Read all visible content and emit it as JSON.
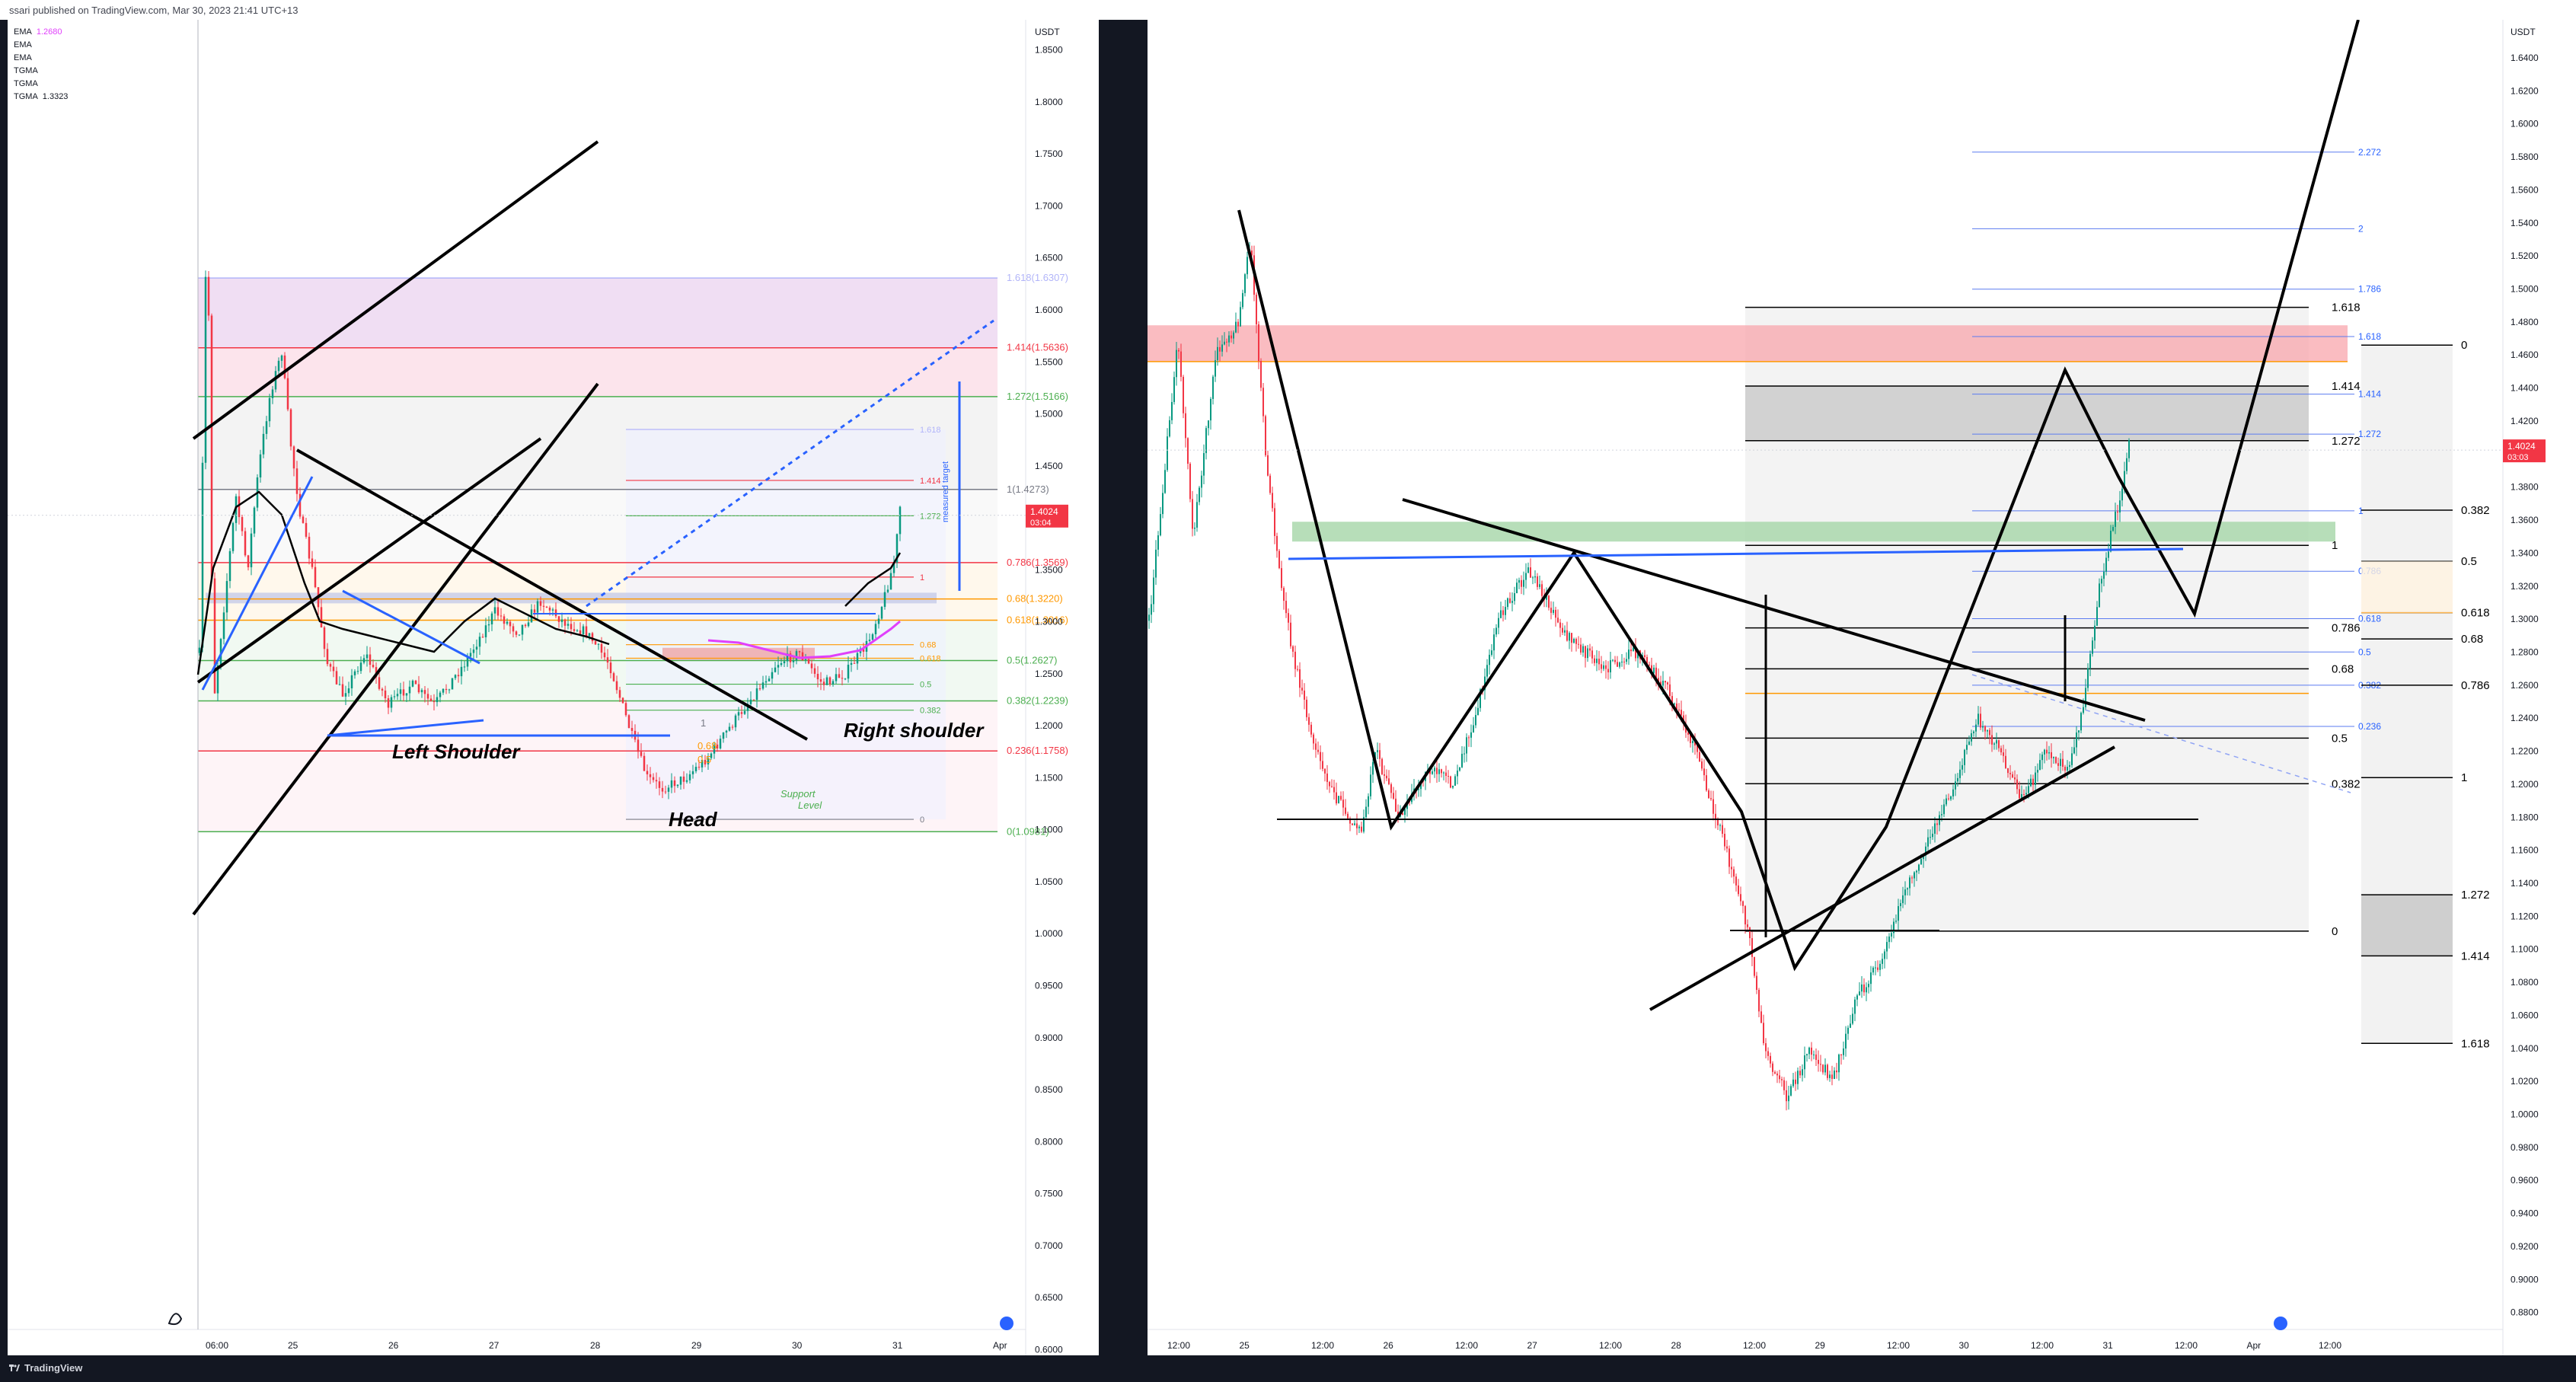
{
  "header": {
    "published": "ssari published on TradingView.com, Mar 30, 2023 21:41 UTC+13"
  },
  "footer": {
    "brand": "TradingView"
  },
  "legend": [
    {
      "name": "EMA",
      "value": "1.2680",
      "color": "#e040fb"
    },
    {
      "name": "EMA",
      "value": ""
    },
    {
      "name": "EMA",
      "value": ""
    },
    {
      "name": "TGMA",
      "value": ""
    },
    {
      "name": "TGMA",
      "value": ""
    },
    {
      "name": "TGMA",
      "value": "1.3323"
    }
  ],
  "colors": {
    "up": "#089981",
    "down": "#f23645",
    "fib_grid": "#787b86",
    "blue_line": "#2962ff"
  },
  "chart_data": [
    {
      "type": "candlestick",
      "pane": "left",
      "currency": "USDT",
      "ylim": [
        0.6,
        1.85
      ],
      "y_ticks": [
        1.85,
        1.8,
        1.75,
        1.7,
        1.65,
        1.6,
        1.55,
        1.5,
        1.45,
        1.4,
        1.35,
        1.3,
        1.25,
        1.2,
        1.15,
        1.1,
        1.05,
        1.0,
        0.95,
        0.9,
        0.85,
        0.8,
        0.75,
        0.7,
        0.65,
        0.6
      ],
      "x_ticks": [
        "06:00",
        "25",
        "26",
        "27",
        "28",
        "29",
        "30",
        "31",
        "Apr"
      ],
      "last_price": "1.4024",
      "countdown": "03:04",
      "fib_levels": [
        {
          "label": "1.618(1.6307)",
          "value": 1.6307,
          "color": "#b2b5f9"
        },
        {
          "label": "1.414(1.5636)",
          "value": 1.5636,
          "color": "#f23645"
        },
        {
          "label": "1.272(1.5166)",
          "value": 1.5166,
          "color": "#4caf50"
        },
        {
          "label": "1(1.4273)",
          "value": 1.4273,
          "color": "#787b86"
        },
        {
          "label": "0.786(1.3569)",
          "value": 1.3569,
          "color": "#f23645"
        },
        {
          "label": "0.68(1.3220)",
          "value": 1.322,
          "color": "#ff9800"
        },
        {
          "label": "0.618(1.3016)",
          "value": 1.3016,
          "color": "#ff9800"
        },
        {
          "label": "0.5(1.2627)",
          "value": 1.2627,
          "color": "#4caf50"
        },
        {
          "label": "0.382(1.2239)",
          "value": 1.2239,
          "color": "#4caf50"
        },
        {
          "label": "0.236(1.1758)",
          "value": 1.1758,
          "color": "#f23645"
        },
        {
          "label": "0(1.0981)",
          "value": 1.0981,
          "color": "#4caf50"
        }
      ],
      "inner_fib_levels": [
        {
          "label": "1.618",
          "value": 1.485,
          "color": "#b2b5f9"
        },
        {
          "label": "1.414",
          "value": 1.436,
          "color": "#f23645"
        },
        {
          "label": "1.272",
          "value": 1.402,
          "color": "#4caf50"
        },
        {
          "label": "1",
          "value": 1.343,
          "color": "#f23645"
        },
        {
          "label": "0.68",
          "value": 1.278,
          "color": "#ff9800"
        },
        {
          "label": "0.618",
          "value": 1.265,
          "color": "#ff9800"
        },
        {
          "label": "0.5",
          "value": 1.24,
          "color": "#4caf50"
        },
        {
          "label": "0.382",
          "value": 1.215,
          "color": "#4caf50"
        },
        {
          "label": "0",
          "value": 1.11,
          "color": "#787b86"
        }
      ],
      "annotations": [
        "Left Shoulder",
        "Head",
        "Right shoulder",
        "Support",
        "Level",
        "measured target"
      ],
      "mini_labels": [
        "1",
        "0.68",
        "0.5"
      ]
    },
    {
      "type": "candlestick",
      "pane": "right",
      "currency": "USDT",
      "ylim": [
        0.87,
        1.65
      ],
      "y_ticks": [
        1.64,
        1.62,
        1.6,
        1.58,
        1.56,
        1.54,
        1.52,
        1.5,
        1.48,
        1.46,
        1.44,
        1.42,
        1.4,
        1.38,
        1.36,
        1.34,
        1.32,
        1.3,
        1.28,
        1.26,
        1.24,
        1.22,
        1.2,
        1.18,
        1.16,
        1.14,
        1.12,
        1.1,
        1.08,
        1.06,
        1.04,
        1.02,
        1.0,
        0.98,
        0.96,
        0.94,
        0.92,
        0.9,
        0.88
      ],
      "x_ticks": [
        "12:00",
        "25",
        "12:00",
        "26",
        "12:00",
        "27",
        "12:00",
        "28",
        "12:00",
        "29",
        "12:00",
        "30",
        "12:00",
        "31",
        "12:00",
        "Apr",
        "12:00"
      ],
      "last_price": "1.4024",
      "countdown": "03:03",
      "fib_levels": [
        {
          "label": "1.618",
          "value": 1.4889
        },
        {
          "label": "1.414",
          "value": 1.4412
        },
        {
          "label": "1.272",
          "value": 1.4081
        },
        {
          "label": "1",
          "value": 1.3447
        },
        {
          "label": "0.786",
          "value": 1.2947
        },
        {
          "label": "0.68",
          "value": 1.2699
        },
        {
          "label": "0.5",
          "value": 1.2279
        },
        {
          "label": "0.382",
          "value": 1.2003
        },
        {
          "label": "0",
          "value": 1.111
        }
      ],
      "blue_fib_levels": [
        {
          "label": "2.272",
          "value": 1.5829
        },
        {
          "label": "2",
          "value": 1.5365
        },
        {
          "label": "1.786",
          "value": 1.4999
        },
        {
          "label": "1.618",
          "value": 1.4712
        },
        {
          "label": "1.414",
          "value": 1.4363
        },
        {
          "label": "1.272",
          "value": 1.4121
        },
        {
          "label": "1",
          "value": 1.3656
        },
        {
          "label": "0.786",
          "value": 1.329
        },
        {
          "label": "0.618",
          "value": 1.3003
        },
        {
          "label": "0.5",
          "value": 1.2801
        },
        {
          "label": "0.382",
          "value": 1.26
        },
        {
          "label": "0.236",
          "value": 1.235
        }
      ],
      "side_fib_levels": [
        {
          "label": "0",
          "value": 1.466
        },
        {
          "label": "0.382",
          "value": 1.366
        },
        {
          "label": "0.5",
          "value": 1.335
        },
        {
          "label": "0.618",
          "value": 1.304
        },
        {
          "label": "0.68",
          "value": 1.288
        },
        {
          "label": "0.786",
          "value": 1.26
        },
        {
          "label": "1",
          "value": 1.204
        },
        {
          "label": "1.272",
          "value": 1.133
        },
        {
          "label": "1.414",
          "value": 1.096
        },
        {
          "label": "1.618",
          "value": 1.043
        }
      ]
    }
  ]
}
